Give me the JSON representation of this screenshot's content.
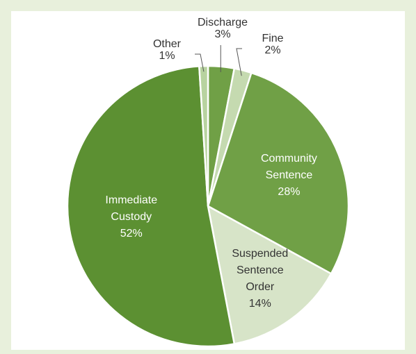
{
  "theme": {
    "background": "#ffffff",
    "border": "#e8f0dc",
    "label_color_dark": "#333333",
    "label_color_light": "#ffffff"
  },
  "chart_data": {
    "type": "pie",
    "title": "",
    "start_angle_deg": 0,
    "direction": "clockwise",
    "slices": [
      {
        "label": "Discharge",
        "value_label": "3%",
        "value": 3,
        "color": "#70a046",
        "label_style": "external",
        "text_color": "#333333"
      },
      {
        "label": "Fine",
        "value_label": "2%",
        "value": 2,
        "color": "#c5dab0",
        "label_style": "external",
        "text_color": "#333333"
      },
      {
        "label": "Community Sentence",
        "lines": [
          "Community",
          "Sentence",
          "28%"
        ],
        "value": 28,
        "color": "#70a046",
        "label_style": "internal",
        "text_color": "#ffffff"
      },
      {
        "label": "Suspended Sentence Order",
        "lines": [
          "Suspended",
          "Sentence",
          "Order",
          "14%"
        ],
        "value": 14,
        "color": "#d7e4c8",
        "label_style": "internal",
        "text_color": "#333333"
      },
      {
        "label": "Immediate Custody",
        "lines": [
          "Immediate",
          "Custody",
          "52%"
        ],
        "value": 52,
        "color": "#5c9032",
        "label_style": "internal",
        "text_color": "#ffffff"
      },
      {
        "label": "Other",
        "value_label": "1%",
        "value": 1,
        "color": "#b8d3a0",
        "label_style": "external",
        "text_color": "#333333"
      }
    ]
  }
}
